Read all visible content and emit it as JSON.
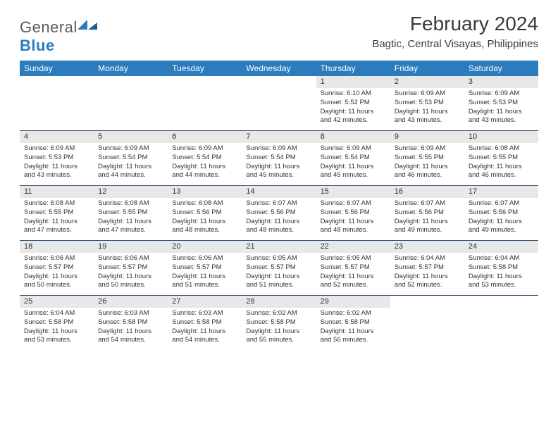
{
  "logo": {
    "text_gray": "General",
    "text_blue": "Blue"
  },
  "title": "February 2024",
  "location": "Bagtic, Central Visayas, Philippines",
  "colors": {
    "header_bg": "#2b7bbd",
    "daynum_bg": "#e8e8e8",
    "rule": "#3a5a7a"
  },
  "day_headers": [
    "Sunday",
    "Monday",
    "Tuesday",
    "Wednesday",
    "Thursday",
    "Friday",
    "Saturday"
  ],
  "weeks": [
    [
      null,
      null,
      null,
      null,
      {
        "n": "1",
        "sr": "Sunrise: 6:10 AM",
        "ss": "Sunset: 5:52 PM",
        "dl": "Daylight: 11 hours and 42 minutes."
      },
      {
        "n": "2",
        "sr": "Sunrise: 6:09 AM",
        "ss": "Sunset: 5:53 PM",
        "dl": "Daylight: 11 hours and 43 minutes."
      },
      {
        "n": "3",
        "sr": "Sunrise: 6:09 AM",
        "ss": "Sunset: 5:53 PM",
        "dl": "Daylight: 11 hours and 43 minutes."
      }
    ],
    [
      {
        "n": "4",
        "sr": "Sunrise: 6:09 AM",
        "ss": "Sunset: 5:53 PM",
        "dl": "Daylight: 11 hours and 43 minutes."
      },
      {
        "n": "5",
        "sr": "Sunrise: 6:09 AM",
        "ss": "Sunset: 5:54 PM",
        "dl": "Daylight: 11 hours and 44 minutes."
      },
      {
        "n": "6",
        "sr": "Sunrise: 6:09 AM",
        "ss": "Sunset: 5:54 PM",
        "dl": "Daylight: 11 hours and 44 minutes."
      },
      {
        "n": "7",
        "sr": "Sunrise: 6:09 AM",
        "ss": "Sunset: 5:54 PM",
        "dl": "Daylight: 11 hours and 45 minutes."
      },
      {
        "n": "8",
        "sr": "Sunrise: 6:09 AM",
        "ss": "Sunset: 5:54 PM",
        "dl": "Daylight: 11 hours and 45 minutes."
      },
      {
        "n": "9",
        "sr": "Sunrise: 6:09 AM",
        "ss": "Sunset: 5:55 PM",
        "dl": "Daylight: 11 hours and 46 minutes."
      },
      {
        "n": "10",
        "sr": "Sunrise: 6:08 AM",
        "ss": "Sunset: 5:55 PM",
        "dl": "Daylight: 11 hours and 46 minutes."
      }
    ],
    [
      {
        "n": "11",
        "sr": "Sunrise: 6:08 AM",
        "ss": "Sunset: 5:55 PM",
        "dl": "Daylight: 11 hours and 47 minutes."
      },
      {
        "n": "12",
        "sr": "Sunrise: 6:08 AM",
        "ss": "Sunset: 5:55 PM",
        "dl": "Daylight: 11 hours and 47 minutes."
      },
      {
        "n": "13",
        "sr": "Sunrise: 6:08 AM",
        "ss": "Sunset: 5:56 PM",
        "dl": "Daylight: 11 hours and 48 minutes."
      },
      {
        "n": "14",
        "sr": "Sunrise: 6:07 AM",
        "ss": "Sunset: 5:56 PM",
        "dl": "Daylight: 11 hours and 48 minutes."
      },
      {
        "n": "15",
        "sr": "Sunrise: 6:07 AM",
        "ss": "Sunset: 5:56 PM",
        "dl": "Daylight: 11 hours and 48 minutes."
      },
      {
        "n": "16",
        "sr": "Sunrise: 6:07 AM",
        "ss": "Sunset: 5:56 PM",
        "dl": "Daylight: 11 hours and 49 minutes."
      },
      {
        "n": "17",
        "sr": "Sunrise: 6:07 AM",
        "ss": "Sunset: 5:56 PM",
        "dl": "Daylight: 11 hours and 49 minutes."
      }
    ],
    [
      {
        "n": "18",
        "sr": "Sunrise: 6:06 AM",
        "ss": "Sunset: 5:57 PM",
        "dl": "Daylight: 11 hours and 50 minutes."
      },
      {
        "n": "19",
        "sr": "Sunrise: 6:06 AM",
        "ss": "Sunset: 5:57 PM",
        "dl": "Daylight: 11 hours and 50 minutes."
      },
      {
        "n": "20",
        "sr": "Sunrise: 6:06 AM",
        "ss": "Sunset: 5:57 PM",
        "dl": "Daylight: 11 hours and 51 minutes."
      },
      {
        "n": "21",
        "sr": "Sunrise: 6:05 AM",
        "ss": "Sunset: 5:57 PM",
        "dl": "Daylight: 11 hours and 51 minutes."
      },
      {
        "n": "22",
        "sr": "Sunrise: 6:05 AM",
        "ss": "Sunset: 5:57 PM",
        "dl": "Daylight: 11 hours and 52 minutes."
      },
      {
        "n": "23",
        "sr": "Sunrise: 6:04 AM",
        "ss": "Sunset: 5:57 PM",
        "dl": "Daylight: 11 hours and 52 minutes."
      },
      {
        "n": "24",
        "sr": "Sunrise: 6:04 AM",
        "ss": "Sunset: 5:58 PM",
        "dl": "Daylight: 11 hours and 53 minutes."
      }
    ],
    [
      {
        "n": "25",
        "sr": "Sunrise: 6:04 AM",
        "ss": "Sunset: 5:58 PM",
        "dl": "Daylight: 11 hours and 53 minutes."
      },
      {
        "n": "26",
        "sr": "Sunrise: 6:03 AM",
        "ss": "Sunset: 5:58 PM",
        "dl": "Daylight: 11 hours and 54 minutes."
      },
      {
        "n": "27",
        "sr": "Sunrise: 6:03 AM",
        "ss": "Sunset: 5:58 PM",
        "dl": "Daylight: 11 hours and 54 minutes."
      },
      {
        "n": "28",
        "sr": "Sunrise: 6:02 AM",
        "ss": "Sunset: 5:58 PM",
        "dl": "Daylight: 11 hours and 55 minutes."
      },
      {
        "n": "29",
        "sr": "Sunrise: 6:02 AM",
        "ss": "Sunset: 5:58 PM",
        "dl": "Daylight: 11 hours and 56 minutes."
      },
      null,
      null
    ]
  ]
}
